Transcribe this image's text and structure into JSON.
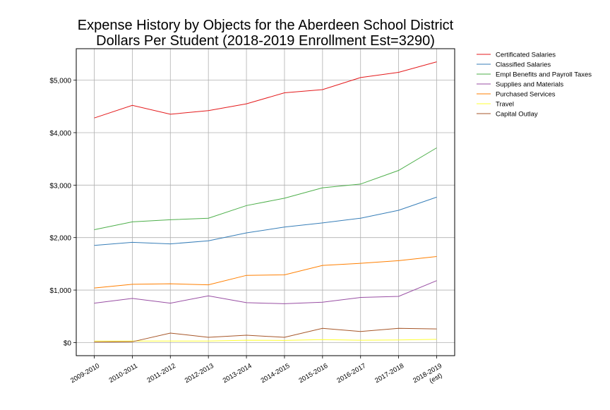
{
  "chart_data": {
    "type": "line",
    "title": "Expense History by Objects for the Aberdeen School District",
    "subtitle": "Dollars Per Student (2018-2019 Enrollment Est=3290)",
    "xlabel": "",
    "ylabel": "",
    "categories": [
      [
        "2009-2010"
      ],
      [
        "2010-2011"
      ],
      [
        "2011-2012"
      ],
      [
        "2012-2013"
      ],
      [
        "2013-2014"
      ],
      [
        "2014-2015"
      ],
      [
        "2015-2016"
      ],
      [
        "2016-2017"
      ],
      [
        "2017-2018"
      ],
      [
        "2018-2019",
        "(est)"
      ]
    ],
    "ylim": [
      -250,
      5600
    ],
    "yticks": [
      0,
      1000,
      2000,
      3000,
      4000,
      5000
    ],
    "ytick_labels": [
      "$0",
      "$1,000",
      "$2,000",
      "$3,000",
      "$4,000",
      "$5,000"
    ],
    "grid": true,
    "legend_position": "outside-top-right",
    "series": [
      {
        "name": "Certificated Salaries",
        "color": "#e41a1c",
        "values": [
          4280,
          4520,
          4350,
          4420,
          4550,
          4760,
          4820,
          5050,
          5150,
          5350
        ]
      },
      {
        "name": "Classified Salaries",
        "color": "#377eb8",
        "values": [
          1850,
          1910,
          1880,
          1940,
          2090,
          2200,
          2280,
          2370,
          2520,
          2770
        ]
      },
      {
        "name": "Empl Benefits and Payroll Taxes",
        "color": "#4daf4a",
        "values": [
          2150,
          2300,
          2340,
          2370,
          2610,
          2750,
          2950,
          3020,
          3280,
          3710
        ]
      },
      {
        "name": "Supplies and Materials",
        "color": "#984ea3",
        "values": [
          750,
          840,
          750,
          890,
          760,
          740,
          770,
          860,
          880,
          1180
        ]
      },
      {
        "name": "Purchased Services",
        "color": "#ff7f00",
        "values": [
          1040,
          1110,
          1120,
          1100,
          1280,
          1290,
          1470,
          1510,
          1560,
          1640
        ]
      },
      {
        "name": "Travel",
        "color": "#ffff33",
        "values": [
          30,
          30,
          30,
          30,
          45,
          40,
          55,
          45,
          50,
          60
        ]
      },
      {
        "name": "Capital Outlay",
        "color": "#a65628",
        "values": [
          10,
          15,
          180,
          100,
          140,
          100,
          270,
          210,
          270,
          260
        ]
      }
    ]
  }
}
